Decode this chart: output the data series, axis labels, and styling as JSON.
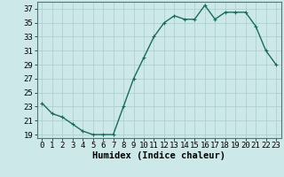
{
  "x": [
    0,
    1,
    2,
    3,
    4,
    5,
    6,
    7,
    8,
    9,
    10,
    11,
    12,
    13,
    14,
    15,
    16,
    17,
    18,
    19,
    20,
    21,
    22,
    23
  ],
  "y": [
    23.5,
    22.0,
    21.5,
    20.5,
    19.5,
    19.0,
    19.0,
    19.0,
    23.0,
    27.0,
    30.0,
    33.0,
    35.0,
    36.0,
    35.5,
    35.5,
    37.5,
    35.5,
    36.5,
    36.5,
    36.5,
    34.5,
    31.0,
    29.0
  ],
  "line_color": "#1a6b5a",
  "marker": "+",
  "marker_size": 3,
  "bg_color": "#cce8e8",
  "grid_color": "#aacccc",
  "xlabel": "Humidex (Indice chaleur)",
  "xlim": [
    -0.5,
    23.5
  ],
  "ylim": [
    18.5,
    38.0
  ],
  "yticks": [
    19,
    21,
    23,
    25,
    27,
    29,
    31,
    33,
    35,
    37
  ],
  "xticks": [
    0,
    1,
    2,
    3,
    4,
    5,
    6,
    7,
    8,
    9,
    10,
    11,
    12,
    13,
    14,
    15,
    16,
    17,
    18,
    19,
    20,
    21,
    22,
    23
  ],
  "xlabel_fontsize": 7.5,
  "tick_fontsize": 6.5,
  "line_width": 1.0
}
